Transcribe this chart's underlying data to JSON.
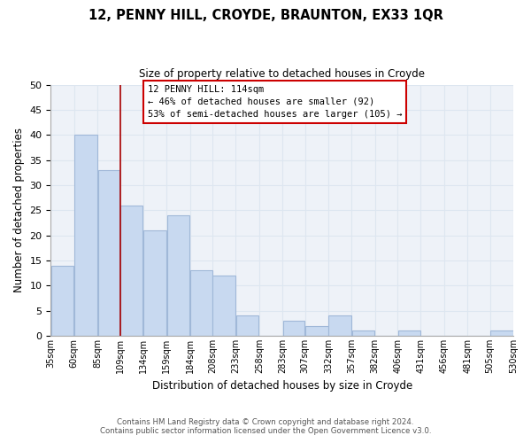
{
  "title": "12, PENNY HILL, CROYDE, BRAUNTON, EX33 1QR",
  "subtitle": "Size of property relative to detached houses in Croyde",
  "xlabel": "Distribution of detached houses by size in Croyde",
  "ylabel": "Number of detached properties",
  "bar_edges": [
    35,
    60,
    85,
    109,
    134,
    159,
    184,
    208,
    233,
    258,
    283,
    307,
    332,
    357,
    382,
    406,
    431,
    456,
    481,
    505,
    530
  ],
  "bar_heights": [
    14,
    40,
    33,
    26,
    21,
    24,
    13,
    12,
    4,
    0,
    3,
    2,
    4,
    1,
    0,
    1,
    0,
    0,
    0,
    1
  ],
  "tick_labels": [
    "35sqm",
    "60sqm",
    "85sqm",
    "109sqm",
    "134sqm",
    "159sqm",
    "184sqm",
    "208sqm",
    "233sqm",
    "258sqm",
    "283sqm",
    "307sqm",
    "332sqm",
    "357sqm",
    "382sqm",
    "406sqm",
    "431sqm",
    "456sqm",
    "481sqm",
    "505sqm",
    "530sqm"
  ],
  "bar_color": "#c8d9f0",
  "bar_edge_color": "#a0b8d8",
  "property_line_x": 109,
  "property_line_color": "#aa0000",
  "ylim": [
    0,
    50
  ],
  "yticks": [
    0,
    5,
    10,
    15,
    20,
    25,
    30,
    35,
    40,
    45,
    50
  ],
  "annotation_title": "12 PENNY HILL: 114sqm",
  "annotation_line1": "← 46% of detached houses are smaller (92)",
  "annotation_line2": "53% of semi-detached houses are larger (105) →",
  "annotation_box_color": "#ffffff",
  "annotation_box_edge": "#cc0000",
  "footer_line1": "Contains HM Land Registry data © Crown copyright and database right 2024.",
  "footer_line2": "Contains public sector information licensed under the Open Government Licence v3.0.",
  "grid_color": "#dde6f0",
  "background_color": "#eef2f8"
}
